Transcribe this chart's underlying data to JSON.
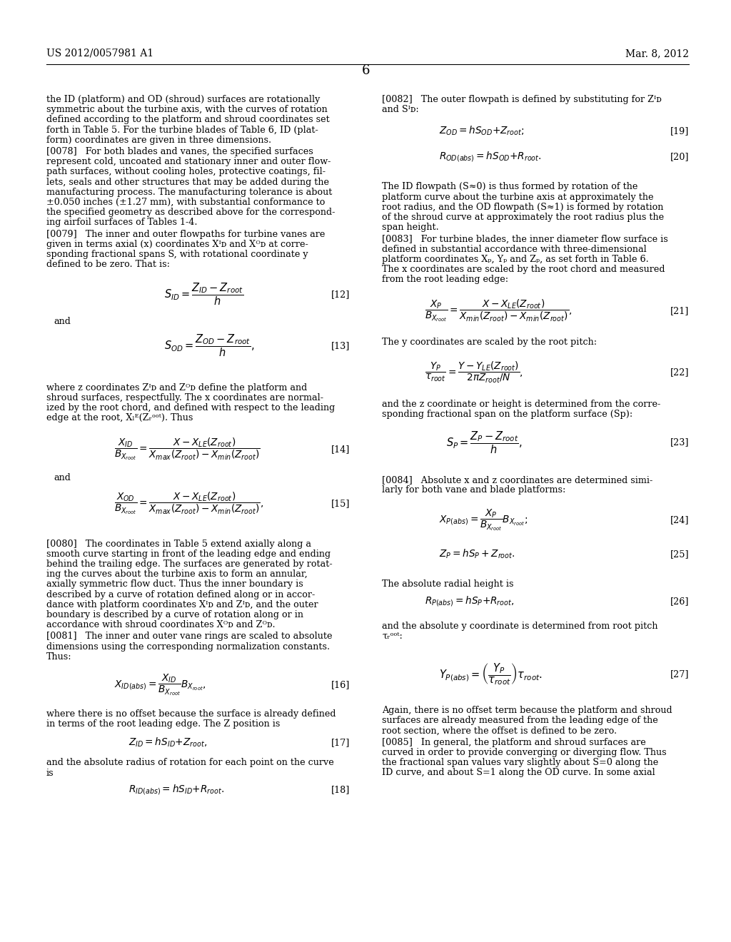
{
  "title_left": "US 2012/0057981 A1",
  "title_right": "Mar. 8, 2012",
  "page_number": "6",
  "bg_color": "#ffffff",
  "text_color": "#000000"
}
